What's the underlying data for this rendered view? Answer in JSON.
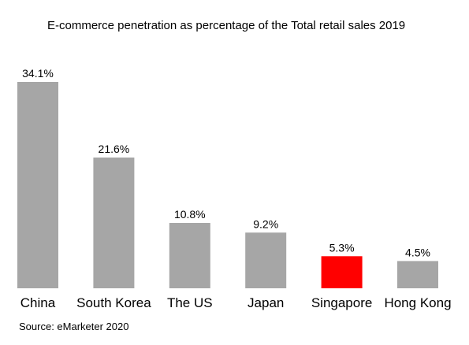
{
  "chart_data": {
    "type": "bar",
    "title": "E-commerce penetration as percentage of the Total retail sales 2019",
    "xlabel": "",
    "ylabel": "",
    "categories": [
      "China",
      "South Korea",
      "The US",
      "Japan",
      "Singapore",
      "Hong Kong"
    ],
    "values": [
      34.1,
      21.6,
      10.8,
      9.2,
      5.3,
      4.5
    ],
    "value_labels": [
      "34.1%",
      "21.6%",
      "10.8%",
      "9.2%",
      "5.3%",
      "4.5%"
    ],
    "bar_colors": [
      "#a6a6a6",
      "#a6a6a6",
      "#a6a6a6",
      "#a6a6a6",
      "#ff0000",
      "#a6a6a6"
    ],
    "grid": false,
    "legend": "none",
    "source": "Source: eMarketer 2020"
  }
}
